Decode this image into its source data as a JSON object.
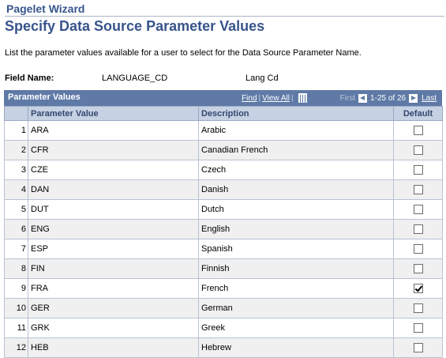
{
  "page": {
    "wizard_title": "Pagelet Wizard",
    "title": "Specify Data Source Parameter Values",
    "intro": "List the parameter values available for a user to select for the Data Source Parameter Name."
  },
  "field": {
    "label": "Field Name:",
    "value": "LANGUAGE_CD",
    "description": "Lang Cd"
  },
  "grid": {
    "caption": "Parameter Values",
    "nav": {
      "find": "Find",
      "view_all": "View All",
      "first": "First",
      "range": "1-25 of 26",
      "last": "Last",
      "icons": [
        "grid-download-icon",
        "prev-arrow-icon",
        "next-arrow-icon"
      ]
    },
    "columns": [
      "",
      "Parameter Value",
      "Description",
      "Default"
    ],
    "rows": [
      {
        "num": "1",
        "value": "ARA",
        "desc": "Arabic",
        "default": false
      },
      {
        "num": "2",
        "value": "CFR",
        "desc": "Canadian French",
        "default": false
      },
      {
        "num": "3",
        "value": "CZE",
        "desc": "Czech",
        "default": false
      },
      {
        "num": "4",
        "value": "DAN",
        "desc": "Danish",
        "default": false
      },
      {
        "num": "5",
        "value": "DUT",
        "desc": "Dutch",
        "default": false
      },
      {
        "num": "6",
        "value": "ENG",
        "desc": "English",
        "default": false
      },
      {
        "num": "7",
        "value": "ESP",
        "desc": "Spanish",
        "default": false
      },
      {
        "num": "8",
        "value": "FIN",
        "desc": "Finnish",
        "default": false
      },
      {
        "num": "9",
        "value": "FRA",
        "desc": "French",
        "default": true
      },
      {
        "num": "10",
        "value": "GER",
        "desc": "German",
        "default": false
      },
      {
        "num": "11",
        "value": "GRK",
        "desc": "Greek",
        "default": false
      },
      {
        "num": "12",
        "value": "HEB",
        "desc": "Hebrew",
        "default": false
      }
    ]
  },
  "colors": {
    "title": "#38548c",
    "grid_header": "#5f7aa6",
    "column_header": "#c6d1e3",
    "row_alt": "#f0f0f0"
  }
}
